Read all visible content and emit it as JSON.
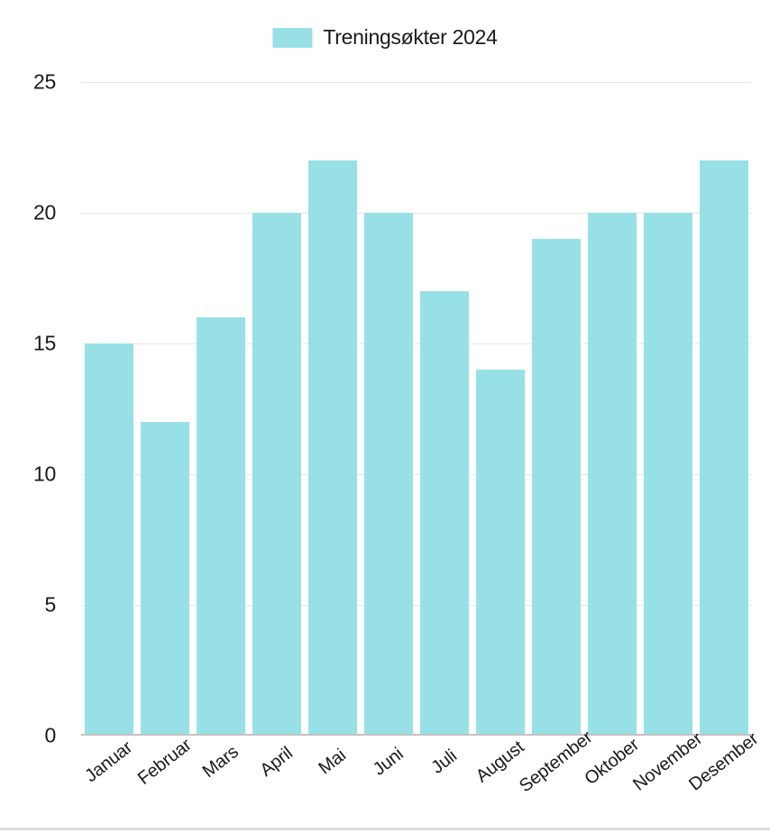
{
  "chart": {
    "type": "bar",
    "legend_label": "Treningsøkter 2024",
    "legend_swatch_color": "#97e1e6",
    "bar_color": "#97e1e6",
    "background_color": "#ffffff",
    "grid_color": "#e6e6e6",
    "baseline_color": "#c2c2c2",
    "text_color": "#1a1a1a",
    "underline_color": "#dedede",
    "legend_fontsize": 23,
    "axis_label_fontsize_y": 23,
    "axis_label_fontsize_x": 20,
    "bar_width_ratio": 0.88,
    "xlabel_rotation_deg": -38,
    "ylim": [
      0,
      25
    ],
    "ytick_step": 5,
    "yticks": [
      0,
      5,
      10,
      15,
      20,
      25
    ],
    "categories": [
      "Januar",
      "Februar",
      "Mars",
      "April",
      "Mai",
      "Juni",
      "Juli",
      "August",
      "September",
      "Oktober",
      "November",
      "Desember"
    ],
    "values": [
      15,
      12,
      16,
      20,
      22,
      20,
      17,
      14,
      19,
      20,
      20,
      22
    ]
  }
}
